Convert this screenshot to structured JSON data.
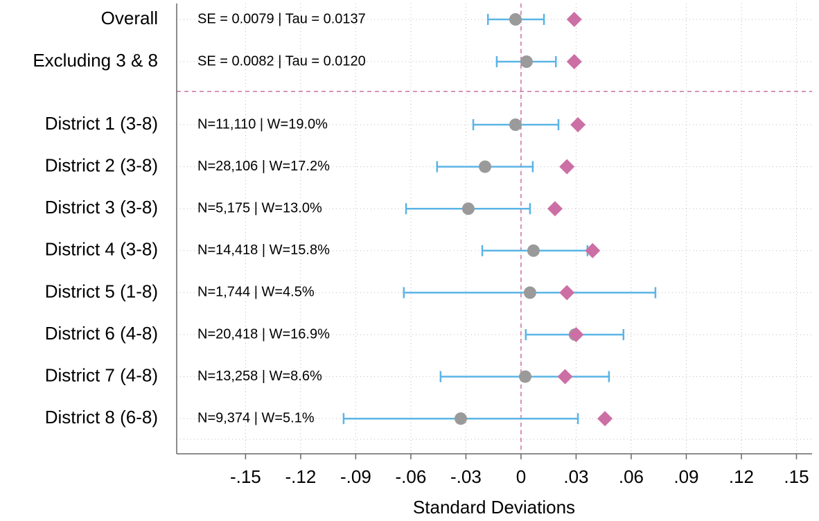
{
  "chart_data": {
    "type": "forest",
    "categories": [
      "Overall",
      "Excluding 3 & 8",
      "District 1 (3-8)",
      "District 2 (3-8)",
      "District 3 (3-8)",
      "District 4 (3-8)",
      "District 5 (1-8)",
      "District 6 (4-8)",
      "District 7 (4-8)",
      "District 8 (6-8)"
    ],
    "annotations": [
      "SE = 0.0079 | Tau = 0.0137",
      "SE = 0.0082 | Tau = 0.0120",
      "N=11,110 | W=19.0%",
      "N=28,106 | W=17.2%",
      "N=5,175 | W=13.0%",
      "N=14,418 | W=15.8%",
      "N=1,744 | W=4.5%",
      "N=20,418 | W=16.9%",
      "N=13,258 | W=8.6%",
      "N=9,374 | W=5.1%"
    ],
    "estimates": [
      -0.003,
      0.003,
      -0.003,
      -0.0196,
      -0.0287,
      0.0068,
      0.0049,
      0.0294,
      0.0023,
      -0.0328
    ],
    "ci_lower": [
      -0.018,
      -0.0132,
      -0.026,
      -0.0457,
      -0.0626,
      -0.0211,
      -0.0638,
      0.0026,
      -0.0438,
      -0.0966
    ],
    "ci_upper": [
      0.0125,
      0.019,
      0.0204,
      0.0064,
      0.0049,
      0.0362,
      0.0732,
      0.0558,
      0.0479,
      0.031
    ],
    "diamond_values": [
      0.029,
      0.029,
      0.031,
      0.025,
      0.0185,
      0.039,
      0.025,
      0.03,
      0.024,
      0.0457
    ],
    "point_color": "#9a9a9a",
    "ci_color": "#5ab4e5",
    "diamond_color": "#cc6fa4",
    "refline": 0,
    "xlabel": "Standard Deviations",
    "xlim": [
      -0.1875,
      0.1585
    ],
    "xticks": [
      {
        "value": -0.15,
        "label": "-.15"
      },
      {
        "value": -0.12,
        "label": "-.12"
      },
      {
        "value": -0.09,
        "label": "-.09"
      },
      {
        "value": -0.06,
        "label": "-.06"
      },
      {
        "value": -0.03,
        "label": "-.03"
      },
      0,
      {
        "value": 0.03,
        "label": ".03"
      },
      {
        "value": 0.06,
        "label": ".06"
      },
      {
        "value": 0.09,
        "label": ".09"
      },
      {
        "value": 0.12,
        "label": ".12"
      },
      {
        "value": 0.15,
        "label": ".15"
      }
    ],
    "grid": true
  }
}
